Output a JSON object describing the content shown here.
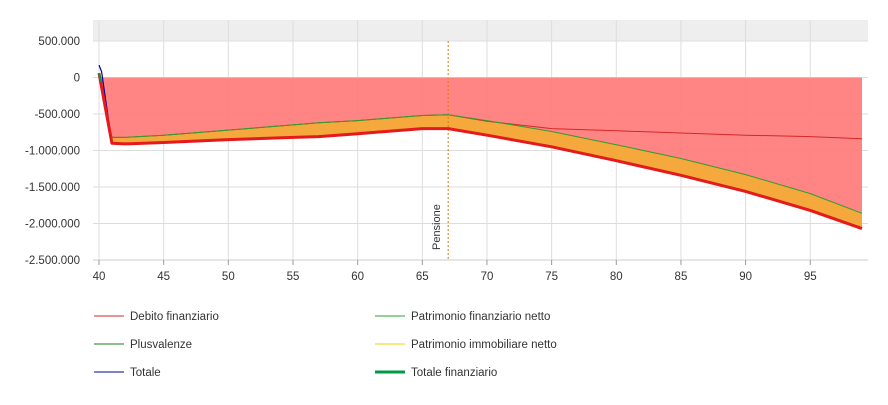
{
  "chart_data": {
    "type": "area",
    "title": "",
    "xlabel": "",
    "ylabel": "",
    "xlim": [
      40,
      99
    ],
    "ylim": [
      -2500000,
      500000
    ],
    "x_ticks": [
      40,
      45,
      50,
      55,
      60,
      65,
      70,
      75,
      80,
      85,
      90,
      95
    ],
    "x_tick_labels": [
      "40",
      "45",
      "50",
      "55",
      "60",
      "65",
      "70",
      "75",
      "80",
      "85",
      "90",
      "95"
    ],
    "y_ticks": [
      500000,
      0,
      -500000,
      -1000000,
      -1500000,
      -2000000,
      -2500000
    ],
    "y_tick_labels": [
      "500.000",
      "0",
      "-500.000",
      "-1.000.000",
      "-1.500.000",
      "-2.000.000",
      "-2.500.000"
    ],
    "grid": true,
    "legend_position": "bottom",
    "annotations": [
      {
        "type": "vline",
        "x": 67,
        "label": "Pensione",
        "color": "#e07a10"
      }
    ],
    "colors": {
      "plot_band": "#eeeeee",
      "grid": "#dddddd",
      "zero_line": "#555555",
      "red_fill": "#ff7b7b",
      "orange_fill": "#f5a83c"
    },
    "series": [
      {
        "name": "Debito finanziario",
        "color": "#d62728",
        "x": [
          40,
          41,
          42,
          45,
          50,
          55,
          57,
          60,
          65,
          67,
          70,
          75,
          80,
          85,
          90,
          95,
          99
        ],
        "values": [
          0,
          -820000,
          -820000,
          -790000,
          -720000,
          -650000,
          -620000,
          -590000,
          -520000,
          -510000,
          -600000,
          -700000,
          -730000,
          -760000,
          -790000,
          -810000,
          -840000
        ]
      },
      {
        "name": "Patrimonio finanziario netto",
        "color": "#2ca02c",
        "x": [
          40,
          41,
          42,
          45,
          50,
          55,
          57,
          60,
          65,
          67,
          70,
          75,
          80,
          85,
          90,
          95,
          99
        ],
        "values": [
          20000,
          -820000,
          -820000,
          -790000,
          -720000,
          -650000,
          -620000,
          -590000,
          -520000,
          -510000,
          -590000,
          -740000,
          -920000,
          -1110000,
          -1330000,
          -1590000,
          -1860000
        ]
      },
      {
        "name": "Plusvalenze",
        "color": "#1b7a1b",
        "x": [
          40,
          99
        ],
        "values": [
          0,
          0
        ]
      },
      {
        "name": "Patrimonio immobiliare netto",
        "color": "#e8d800",
        "x": [
          40,
          99
        ],
        "values": [
          0,
          0
        ]
      },
      {
        "name": "Totale",
        "color": "#000099",
        "x": [
          40,
          40.2,
          41
        ],
        "values": [
          170000,
          80000,
          -900000
        ]
      },
      {
        "name": "Totale finanziario",
        "color": "#009944",
        "x": [
          40,
          41,
          42,
          45,
          50,
          55,
          57,
          60,
          65,
          67,
          70,
          75,
          80,
          85,
          90,
          95,
          99
        ],
        "values": [
          60000,
          -900000,
          -910000,
          -890000,
          -850000,
          -820000,
          -810000,
          -770000,
          -700000,
          -700000,
          -790000,
          -950000,
          -1140000,
          -1340000,
          -1560000,
          -1820000,
          -2070000
        ]
      }
    ]
  }
}
